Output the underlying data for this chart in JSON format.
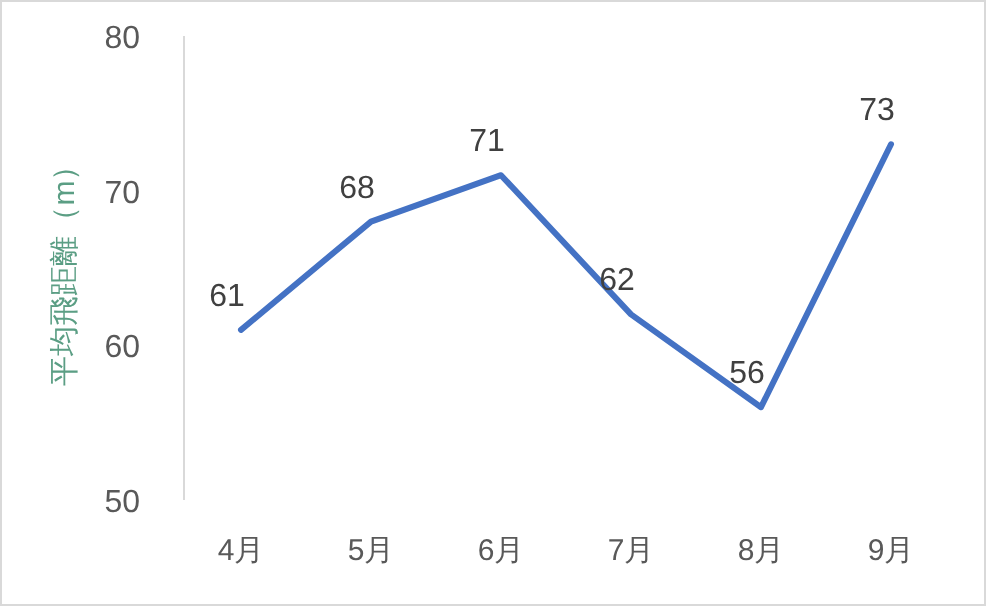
{
  "chart_data": {
    "type": "line",
    "ylabel": "平均飛距離（m）",
    "categories": [
      "4月",
      "5月",
      "6月",
      "7月",
      "8月",
      "9月"
    ],
    "series": [
      {
        "color": "#4472c4",
        "values": [
          61,
          68,
          71,
          62,
          56,
          73
        ]
      }
    ],
    "ylim": [
      50,
      80
    ],
    "yticks": [
      50,
      60,
      70,
      80
    ],
    "grid": false,
    "data_labels": true,
    "marker": "none",
    "line_style": "solid"
  }
}
